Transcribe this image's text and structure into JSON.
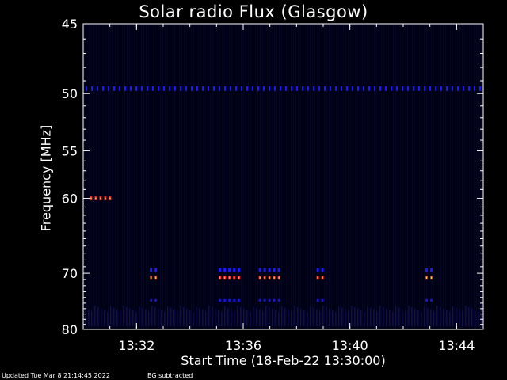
{
  "chart_data": {
    "type": "heatmap",
    "title": "Solar radio Flux (Glasgow)",
    "xlabel": "Start Time (18-Feb-22 13:30:00)",
    "ylabel": "Frequency [MHz]",
    "x_ticks": [
      "13:32",
      "13:36",
      "13:40",
      "13:44"
    ],
    "y_ticks": [
      45,
      50,
      55,
      60,
      70,
      80
    ],
    "xlim": [
      "13:30:00",
      "13:45:00"
    ],
    "ylim": [
      80,
      45
    ],
    "y_scale": "reciprocal",
    "colormap": [
      "#000010",
      "#1a1aff",
      "#ff2020",
      "#ffff60"
    ],
    "features": [
      {
        "kind": "band",
        "frequency_mhz": 49.6,
        "start": "13:30:00",
        "end": "13:45:00",
        "intensity": "medium"
      },
      {
        "kind": "burst",
        "frequency_mhz": 60,
        "start": "13:30:15",
        "end": "13:31:00",
        "intensity": "high"
      },
      {
        "kind": "burst",
        "frequency_mhz": 69.5,
        "start": "13:32:30",
        "end": "13:32:45",
        "intensity": "medium"
      },
      {
        "kind": "burst",
        "frequency_mhz": 70.7,
        "start": "13:32:30",
        "end": "13:32:45",
        "intensity": "high"
      },
      {
        "kind": "burst",
        "frequency_mhz": 69.5,
        "start": "13:35:05",
        "end": "13:35:50",
        "intensity": "medium"
      },
      {
        "kind": "burst",
        "frequency_mhz": 70.7,
        "start": "13:35:05",
        "end": "13:35:50",
        "intensity": "high"
      },
      {
        "kind": "burst",
        "frequency_mhz": 69.5,
        "start": "13:36:35",
        "end": "13:37:20",
        "intensity": "medium"
      },
      {
        "kind": "burst",
        "frequency_mhz": 70.7,
        "start": "13:36:35",
        "end": "13:37:20",
        "intensity": "high"
      },
      {
        "kind": "burst",
        "frequency_mhz": 69.5,
        "start": "13:38:45",
        "end": "13:39:00",
        "intensity": "medium"
      },
      {
        "kind": "burst",
        "frequency_mhz": 70.7,
        "start": "13:38:45",
        "end": "13:39:00",
        "intensity": "high"
      },
      {
        "kind": "burst",
        "frequency_mhz": 69.5,
        "start": "13:42:50",
        "end": "13:43:05",
        "intensity": "medium"
      },
      {
        "kind": "burst",
        "frequency_mhz": 70.7,
        "start": "13:42:50",
        "end": "13:43:05",
        "intensity": "high"
      },
      {
        "kind": "burst",
        "frequency_mhz": 74.5,
        "start": "13:32:30",
        "end": "13:32:45",
        "intensity": "low"
      },
      {
        "kind": "burst",
        "frequency_mhz": 74.5,
        "start": "13:35:05",
        "end": "13:35:50",
        "intensity": "low"
      },
      {
        "kind": "burst",
        "frequency_mhz": 74.5,
        "start": "13:36:35",
        "end": "13:37:20",
        "intensity": "low"
      },
      {
        "kind": "burst",
        "frequency_mhz": 74.5,
        "start": "13:38:45",
        "end": "13:39:00",
        "intensity": "low"
      },
      {
        "kind": "burst",
        "frequency_mhz": 74.5,
        "start": "13:42:50",
        "end": "13:43:05",
        "intensity": "low"
      },
      {
        "kind": "noise",
        "frequency_mhz": 78,
        "start": "13:30:00",
        "end": "13:45:00",
        "intensity": "low"
      }
    ]
  },
  "footer": {
    "updated": "Updated Tue Mar  8 21:14:45 2022",
    "note": "BG subtracted"
  }
}
